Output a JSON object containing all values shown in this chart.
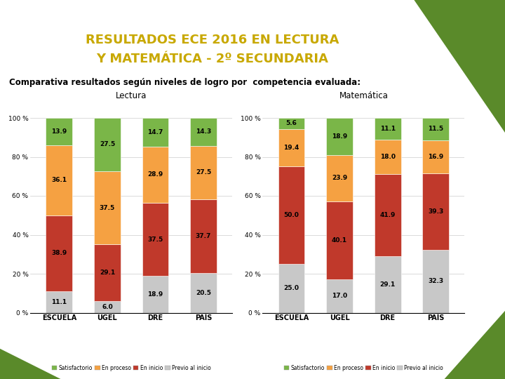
{
  "title_line1": "RESULTADOS ECE 2016 EN LECTURA",
  "title_line2": "Y MATEMÁTICA - 2º SECUNDARIA",
  "subtitle": "Comparativa resultados según niveles de logro por  competencia evaluada:",
  "title_text_color": "#c8a800",
  "subtitle_text_color": "#000000",
  "categories": [
    "ESCUELA",
    "UGEL",
    "DRE",
    "PAÍS"
  ],
  "lectura": {
    "title": "Lectura",
    "previo_al_inicio": [
      11.1,
      6.0,
      18.9,
      20.5
    ],
    "en_inicio": [
      38.9,
      29.1,
      37.5,
      37.7
    ],
    "en_proceso": [
      36.1,
      37.5,
      28.9,
      27.5
    ],
    "satisfactorio": [
      13.9,
      27.5,
      14.7,
      14.3
    ]
  },
  "matematica": {
    "title": "Matemática",
    "previo_al_inicio": [
      25.0,
      17.0,
      29.1,
      32.3
    ],
    "en_inicio": [
      50.0,
      40.1,
      41.9,
      39.3
    ],
    "en_proceso": [
      19.4,
      23.9,
      18.0,
      16.9
    ],
    "satisfactorio": [
      5.6,
      18.9,
      11.1,
      11.5
    ]
  },
  "colors": {
    "satisfactorio": "#7ab648",
    "en_proceso": "#f5a142",
    "en_inicio": "#c0392b",
    "previo_al_inicio": "#c8c8c8"
  },
  "legend_labels": [
    "Satisfactorio",
    "En proceso",
    "En inicio",
    "Previo al inicio"
  ],
  "bar_width": 0.55,
  "chart_bg_color": "#ffffff",
  "green_color": "#5a8a2a",
  "subtitle_bg_color": "#e8e8e8",
  "grid_color": "#cccccc"
}
